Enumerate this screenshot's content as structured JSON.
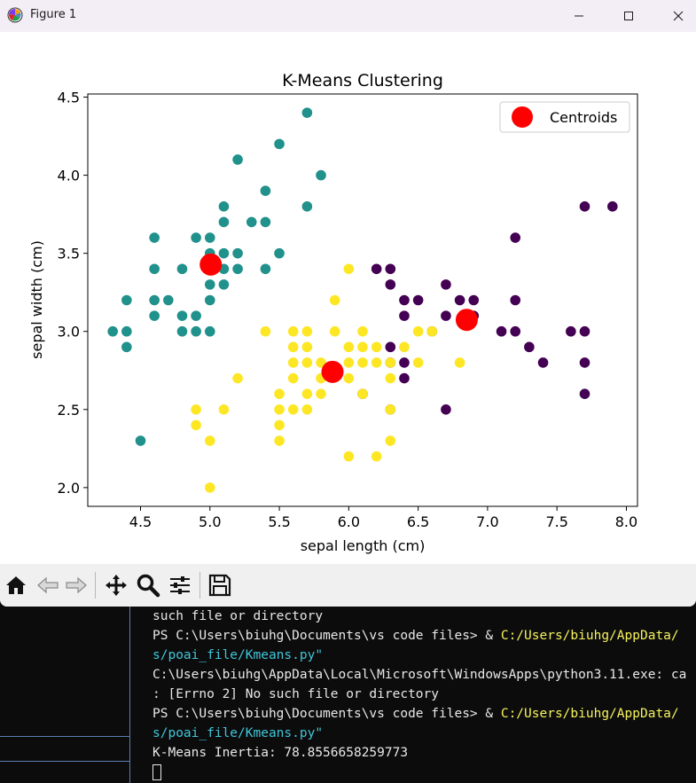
{
  "window": {
    "title": "Figure 1",
    "minimize_glyph": "─",
    "maximize_glyph": "□",
    "close_glyph": "✕"
  },
  "chart_data": {
    "type": "scatter",
    "title": "K-Means Clustering",
    "xlabel": "sepal length (cm)",
    "ylabel": "sepal width (cm)",
    "xlim": [
      4.12,
      8.08
    ],
    "ylim": [
      1.88,
      4.52
    ],
    "xticks": [
      "4.5",
      "5.0",
      "5.5",
      "6.0",
      "6.5",
      "7.0",
      "7.5",
      "8.0"
    ],
    "yticks": [
      "2.0",
      "2.5",
      "3.0",
      "3.5",
      "4.0",
      "4.5"
    ],
    "grid": false,
    "legend_position": "top-right",
    "cluster_colors": [
      "#440154",
      "#21918c",
      "#fde725"
    ],
    "clusters": [
      {
        "color": "#21918c",
        "points": [
          [
            5.7,
            4.4
          ],
          [
            5.5,
            4.2
          ],
          [
            5.2,
            4.1
          ],
          [
            5.8,
            4.0
          ],
          [
            5.4,
            3.9
          ],
          [
            5.1,
            3.8
          ],
          [
            5.7,
            3.8
          ],
          [
            5.1,
            3.7
          ],
          [
            5.3,
            3.7
          ],
          [
            5.4,
            3.7
          ],
          [
            4.6,
            3.6
          ],
          [
            4.9,
            3.6
          ],
          [
            5.0,
            3.6
          ],
          [
            5.0,
            3.5
          ],
          [
            5.1,
            3.5
          ],
          [
            5.2,
            3.5
          ],
          [
            5.5,
            3.5
          ],
          [
            4.6,
            3.4
          ],
          [
            4.8,
            3.4
          ],
          [
            5.0,
            3.4
          ],
          [
            5.1,
            3.4
          ],
          [
            5.2,
            3.4
          ],
          [
            5.4,
            3.4
          ],
          [
            5.0,
            3.3
          ],
          [
            5.1,
            3.3
          ],
          [
            4.4,
            3.2
          ],
          [
            4.6,
            3.2
          ],
          [
            4.7,
            3.2
          ],
          [
            5.0,
            3.2
          ],
          [
            4.6,
            3.1
          ],
          [
            4.8,
            3.1
          ],
          [
            4.9,
            3.1
          ],
          [
            4.3,
            3.0
          ],
          [
            4.4,
            3.0
          ],
          [
            4.8,
            3.0
          ],
          [
            4.9,
            3.0
          ],
          [
            5.0,
            3.0
          ],
          [
            4.4,
            2.9
          ],
          [
            4.5,
            2.3
          ]
        ]
      },
      {
        "color": "#440154",
        "points": [
          [
            7.7,
            3.8
          ],
          [
            7.9,
            3.8
          ],
          [
            7.2,
            3.6
          ],
          [
            6.2,
            3.4
          ],
          [
            6.3,
            3.4
          ],
          [
            6.3,
            3.3
          ],
          [
            6.7,
            3.3
          ],
          [
            6.4,
            3.2
          ],
          [
            6.5,
            3.2
          ],
          [
            6.8,
            3.2
          ],
          [
            6.9,
            3.2
          ],
          [
            7.2,
            3.2
          ],
          [
            6.4,
            3.1
          ],
          [
            6.7,
            3.1
          ],
          [
            6.9,
            3.1
          ],
          [
            7.1,
            3.0
          ],
          [
            7.2,
            3.0
          ],
          [
            7.6,
            3.0
          ],
          [
            7.7,
            3.0
          ],
          [
            6.6,
            3.0
          ],
          [
            7.3,
            2.9
          ],
          [
            6.3,
            2.9
          ],
          [
            7.4,
            2.8
          ],
          [
            7.7,
            2.8
          ],
          [
            6.4,
            2.8
          ],
          [
            6.3,
            2.8
          ],
          [
            6.4,
            2.7
          ],
          [
            6.3,
            2.5
          ],
          [
            6.7,
            2.5
          ],
          [
            6.1,
            2.6
          ],
          [
            7.7,
            2.6
          ]
        ]
      },
      {
        "color": "#fde725",
        "points": [
          [
            6.0,
            3.4
          ],
          [
            5.9,
            3.2
          ],
          [
            5.4,
            3.0
          ],
          [
            5.6,
            3.0
          ],
          [
            5.7,
            3.0
          ],
          [
            5.9,
            3.0
          ],
          [
            6.1,
            3.0
          ],
          [
            6.5,
            3.0
          ],
          [
            6.6,
            3.0
          ],
          [
            6.0,
            2.9
          ],
          [
            6.1,
            2.9
          ],
          [
            6.2,
            2.9
          ],
          [
            5.6,
            2.9
          ],
          [
            6.4,
            2.9
          ],
          [
            5.7,
            2.9
          ],
          [
            5.8,
            2.8
          ],
          [
            5.6,
            2.8
          ],
          [
            5.7,
            2.8
          ],
          [
            6.1,
            2.8
          ],
          [
            6.2,
            2.8
          ],
          [
            6.3,
            2.8
          ],
          [
            6.5,
            2.8
          ],
          [
            6.8,
            2.8
          ],
          [
            6.0,
            2.8
          ],
          [
            5.2,
            2.7
          ],
          [
            5.6,
            2.7
          ],
          [
            5.8,
            2.7
          ],
          [
            6.0,
            2.7
          ],
          [
            6.3,
            2.7
          ],
          [
            5.5,
            2.6
          ],
          [
            5.7,
            2.6
          ],
          [
            5.8,
            2.6
          ],
          [
            6.1,
            2.6
          ],
          [
            4.9,
            2.5
          ],
          [
            5.1,
            2.5
          ],
          [
            5.5,
            2.5
          ],
          [
            5.6,
            2.5
          ],
          [
            5.7,
            2.5
          ],
          [
            6.3,
            2.5
          ],
          [
            4.9,
            2.4
          ],
          [
            5.5,
            2.4
          ],
          [
            5.0,
            2.3
          ],
          [
            5.5,
            2.3
          ],
          [
            6.3,
            2.3
          ],
          [
            6.0,
            2.2
          ],
          [
            6.2,
            2.2
          ],
          [
            5.0,
            2.0
          ]
        ]
      }
    ],
    "centroids": {
      "name": "Centroids",
      "color": "#ff0000",
      "points": [
        [
          5.006,
          3.428
        ],
        [
          6.85,
          3.074
        ],
        [
          5.883,
          2.741
        ]
      ]
    }
  },
  "toolbar": {
    "icons": [
      "home-icon",
      "back-arrow-icon",
      "forward-arrow-icon",
      "pan-icon",
      "zoom-icon",
      "configure-subplots-icon",
      "save-icon"
    ]
  },
  "terminal": {
    "lines": [
      {
        "segments": [
          {
            "text": "such file or directory",
            "color": "white"
          }
        ]
      },
      {
        "segments": [
          {
            "text": "PS C:\\Users\\biuhg\\Documents\\vs code files> & ",
            "color": "white"
          },
          {
            "text": "C:/Users/biuhg/AppData/",
            "color": "yellow"
          }
        ]
      },
      {
        "segments": [
          {
            "text": "s/poai_file/Kmeans.py\"",
            "color": "cyan"
          }
        ]
      },
      {
        "segments": [
          {
            "text": "C:\\Users\\biuhg\\AppData\\Local\\Microsoft\\WindowsApps\\python3.11.exe: ca",
            "color": "white"
          }
        ]
      },
      {
        "segments": [
          {
            "text": ": [Errno 2] No such file or directory",
            "color": "white"
          }
        ]
      },
      {
        "segments": [
          {
            "text": "PS C:\\Users\\biuhg\\Documents\\vs code files> & ",
            "color": "white"
          },
          {
            "text": "C:/Users/biuhg/AppData/",
            "color": "yellow"
          }
        ]
      },
      {
        "segments": [
          {
            "text": "s/poai_file/Kmeans.py\"",
            "color": "cyan"
          }
        ]
      },
      {
        "segments": [
          {
            "text": "K-Means Inertia: 78.8556658259773",
            "color": "white"
          }
        ]
      }
    ]
  }
}
